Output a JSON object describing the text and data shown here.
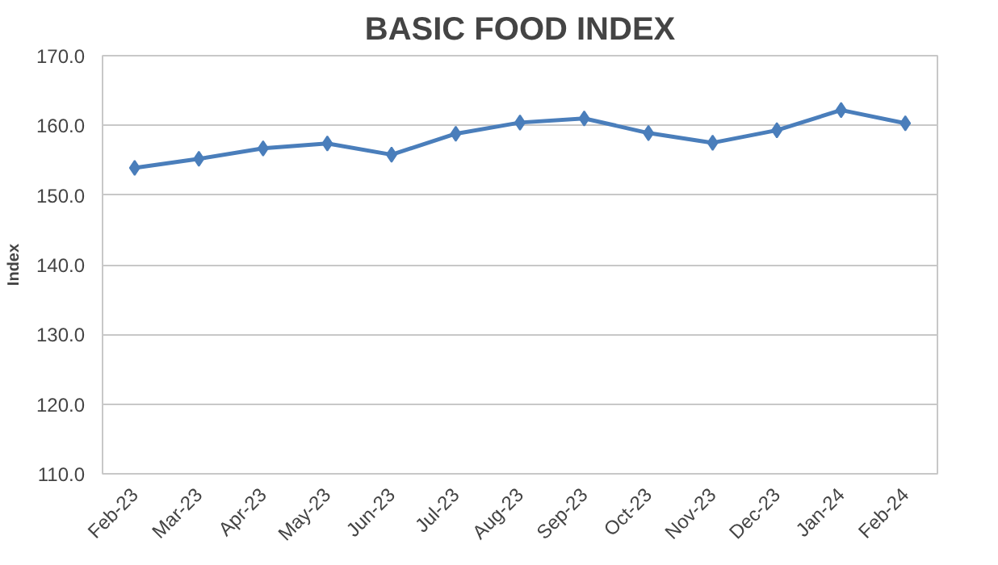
{
  "chart_data": {
    "type": "line",
    "title": "BASIC FOOD INDEX",
    "ylabel": "Index",
    "categories": [
      "Feb-23",
      "Mar-23",
      "Apr-23",
      "May-23",
      "Jun-23",
      "Jul-23",
      "Aug-23",
      "Sep-23",
      "Oct-23",
      "Nov-23",
      "Dec-23",
      "Jan-24",
      "Feb-24"
    ],
    "series": [
      {
        "color": "#4a7ebb",
        "values": [
          153.9,
          155.2,
          156.7,
          157.4,
          155.8,
          158.8,
          160.4,
          161.0,
          158.9,
          157.5,
          159.3,
          162.2,
          160.3
        ]
      }
    ],
    "ylim": [
      110,
      170
    ],
    "yticks": [
      {
        "value": 110,
        "label": "110.0"
      },
      {
        "value": 120,
        "label": "120.0"
      },
      {
        "value": 130,
        "label": "130.0"
      },
      {
        "value": 140,
        "label": "140.0"
      },
      {
        "value": 150,
        "label": "150.0"
      },
      {
        "value": 160,
        "label": "160.0"
      },
      {
        "value": 170,
        "label": "170.0"
      }
    ],
    "grid": "y",
    "marker": "diamond",
    "line_style": "solid"
  }
}
